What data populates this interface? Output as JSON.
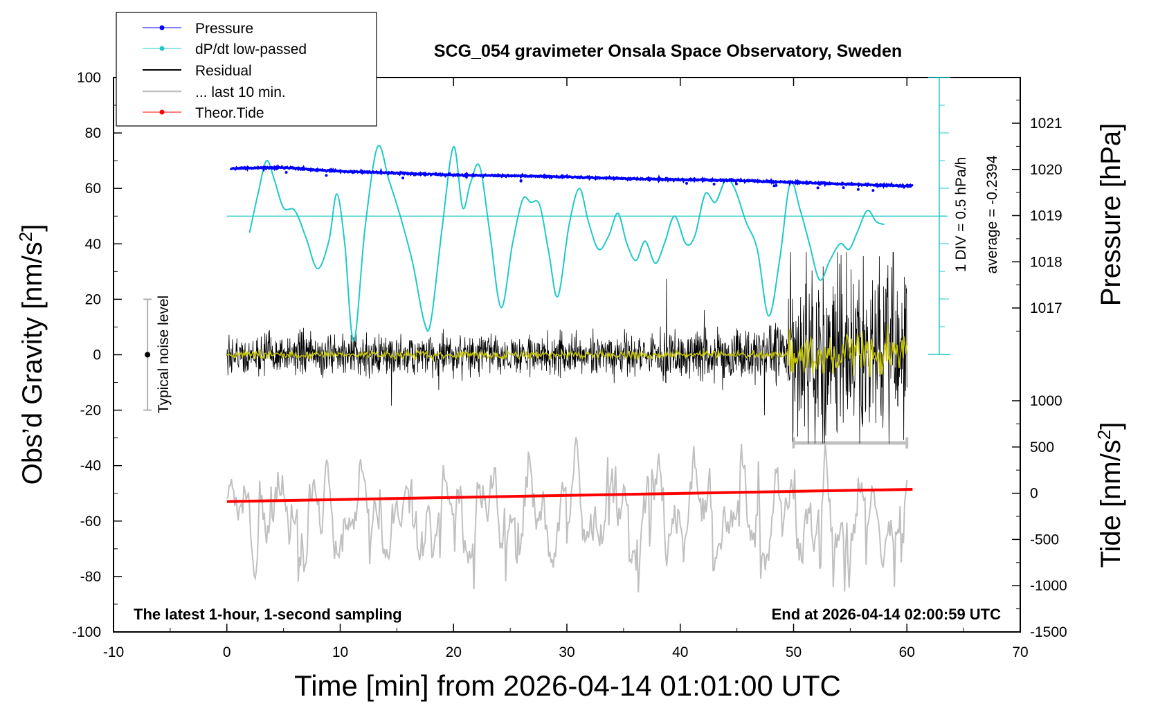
{
  "chart_data": {
    "type": "line",
    "title": "SCG_054 gravimeter Onsala Space Observatory, Sweden",
    "xlabel": "Time [min] from 2026-04-14 01:01:00 UTC",
    "ylabel": "Obs'd Gravity [nm/s²]",
    "ylabel_right_top": "Pressure [hPa]",
    "ylabel_right_bottom": "Tide [nm/s²]",
    "xlim": [
      -10,
      70
    ],
    "ylim": [
      -100,
      100
    ],
    "pressure_lim": [
      1016,
      1022
    ],
    "tide_lim": [
      -1500,
      1000
    ],
    "xticks": [
      -10,
      0,
      10,
      20,
      30,
      40,
      50,
      60,
      70
    ],
    "yticks": [
      100,
      80,
      60,
      40,
      20,
      0,
      -20,
      -40,
      -60,
      -80,
      -100
    ],
    "pressure_ticks": [
      1021,
      1020,
      1019,
      1018,
      1017
    ],
    "tide_ticks": [
      1000,
      500,
      0,
      -500,
      -1000,
      -1500
    ],
    "grid": false,
    "legend_position": "top-left",
    "colors": {
      "pressure": "#0000ff",
      "dpdt": "#20c8c8",
      "residual": "#000000",
      "last10": "#c0c0c0",
      "filtered": "#c8c800",
      "tide": "#ff0000",
      "noise_bar": "#b0b0b0"
    },
    "legend": [
      {
        "label": "Pressure",
        "color": "#0000ff",
        "marker": true
      },
      {
        "label": "dP/dt low-passed",
        "color": "#20c8c8",
        "marker": true
      },
      {
        "label": "Residual",
        "color": "#000000",
        "marker": false
      },
      {
        "label": "... last 10 min.",
        "color": "#c0c0c0",
        "marker": false
      },
      {
        "label": "Theor.Tide",
        "color": "#ff0000",
        "marker": true
      }
    ],
    "annotations": {
      "bottom_left": "The latest 1-hour, 1-second sampling",
      "bottom_right": "End at 2026-04-14 02:00:59 UTC",
      "scale_line1": "1 DIV = 0.5 hPa/h",
      "scale_line2": "average = -0.2394",
      "noise_label": "Typical noise level"
    },
    "pressure_series": {
      "name": "Pressure",
      "x": [
        0,
        5,
        10,
        15,
        20,
        25,
        30,
        35,
        40,
        45,
        50,
        55,
        60
      ],
      "y": [
        1020.02,
        1020.04,
        1019.96,
        1019.92,
        1019.88,
        1019.86,
        1019.84,
        1019.8,
        1019.78,
        1019.76,
        1019.72,
        1019.68,
        1019.64
      ]
    },
    "dpdt_series": {
      "name": "dP/dt low-passed",
      "x": [
        2,
        2.8,
        3.5,
        4.2,
        5,
        6,
        7,
        8,
        9,
        9.7,
        10.4,
        11.2,
        12.2,
        13.3,
        14.3,
        15.3,
        16.4,
        17.4,
        18,
        19,
        20,
        20.8,
        21.5,
        22.3,
        23.2,
        24.2,
        25.2,
        26.1,
        26.8,
        27.6,
        28.4,
        29.2,
        30.2,
        31.1,
        31.9,
        32.8,
        33.7,
        34.5,
        35.3,
        36.1,
        36.9,
        37.8,
        38.6,
        39.5,
        40.5,
        41.3,
        42.2,
        43.1,
        44,
        44.8,
        45.8,
        46.8,
        47.8,
        48.8,
        49.7,
        50.6,
        51.4,
        52.3,
        53.2,
        54.1,
        54.9,
        55.6,
        56.5,
        57.3,
        58
      ],
      "y": [
        44,
        59,
        70,
        63,
        53,
        52,
        42,
        31,
        41,
        58,
        40,
        5,
        46,
        75,
        63,
        50,
        33,
        12,
        12,
        46,
        75,
        53,
        62,
        68,
        44,
        17,
        40,
        56,
        55,
        54,
        37,
        21,
        47,
        60,
        48,
        38,
        43,
        51,
        40,
        34,
        41,
        33,
        40,
        50,
        40,
        43,
        58,
        55,
        63,
        60,
        48,
        38,
        14,
        35,
        62,
        52,
        40,
        27,
        34,
        40,
        38,
        44,
        52,
        48,
        47
      ]
    },
    "tide_series": {
      "name": "Theor.Tide",
      "x": [
        0,
        10,
        20,
        30,
        40,
        50,
        60.5
      ],
      "y": [
        -90,
        -68,
        -46,
        -24,
        -2,
        20,
        42
      ]
    },
    "residual_range": {
      "x": [
        0,
        60
      ],
      "typical_amplitude": 6,
      "max": 37,
      "min": -32
    },
    "last10_range": {
      "x": [
        50,
        60
      ]
    },
    "noise_level": {
      "x": -7,
      "y": [
        -20,
        20
      ]
    }
  }
}
